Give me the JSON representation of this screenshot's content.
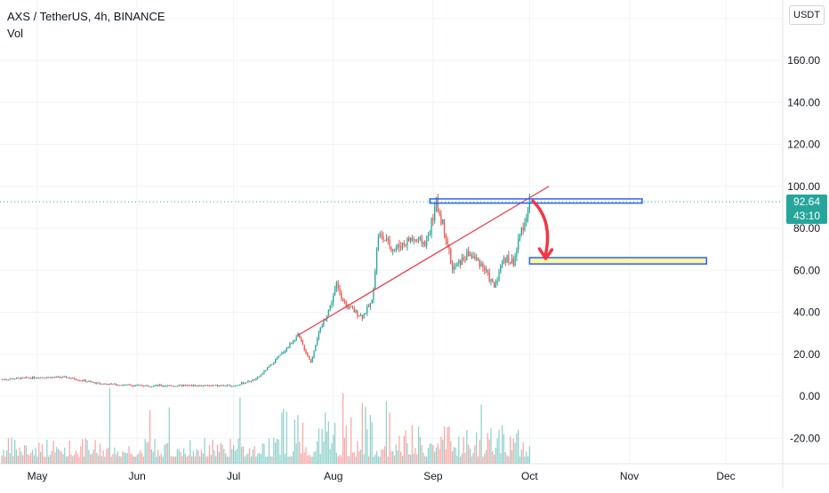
{
  "header": {
    "symbol_line": "AXS / TetherUS, 4h, BINANCE",
    "indicator": "Vol"
  },
  "price_axis": {
    "currency_button": "USDT",
    "current_price": "92.64",
    "countdown": "43:10"
  },
  "chart_data": {
    "type": "candlestick",
    "symbol": "AXS / TetherUS",
    "interval": "4h",
    "exchange": "BINANCE",
    "y_ticks": [
      "160.00",
      "140.00",
      "120.00",
      "100.00",
      "80.00",
      "60.00",
      "40.00",
      "20.00",
      "0.00",
      "-20.00"
    ],
    "y_tick_values": [
      160,
      140,
      120,
      100,
      80,
      60,
      40,
      20,
      0,
      -20
    ],
    "x_ticks": [
      "May",
      "Jun",
      "Jul",
      "Aug",
      "Sep",
      "Oct",
      "Nov",
      "Dec"
    ],
    "ylim": [
      -30,
      180
    ],
    "last_price": 92.64,
    "price_path": [
      [
        "Apr 20",
        8
      ],
      [
        "May 1",
        9
      ],
      [
        "May 10",
        9
      ],
      [
        "May 20",
        6
      ],
      [
        "Jun 1",
        5
      ],
      [
        "Jun 15",
        5
      ],
      [
        "Jul 1",
        5
      ],
      [
        "Jul 8",
        8
      ],
      [
        "Jul 12",
        14
      ],
      [
        "Jul 17",
        22
      ],
      [
        "Jul 21",
        29
      ],
      [
        "Jul 25",
        16
      ],
      [
        "Jul 27",
        28
      ],
      [
        "Jul 31",
        43
      ],
      [
        "Aug 2",
        53
      ],
      [
        "Aug 5",
        43
      ],
      [
        "Aug 10",
        38
      ],
      [
        "Aug 13",
        45
      ],
      [
        "Aug 15",
        77
      ],
      [
        "Aug 20",
        70
      ],
      [
        "Aug 25",
        75
      ],
      [
        "Aug 30",
        73
      ],
      [
        "Sep 2",
        92
      ],
      [
        "Sep 5",
        77
      ],
      [
        "Sep 7",
        60
      ],
      [
        "Sep 12",
        68
      ],
      [
        "Sep 16",
        63
      ],
      [
        "Sep 20",
        52
      ],
      [
        "Sep 23",
        66
      ],
      [
        "Sep 26",
        64
      ],
      [
        "Sep 28",
        76
      ],
      [
        "Oct 1",
        92.64
      ]
    ],
    "annotations": {
      "trendline": [
        [
          "Jul 21",
          29
        ],
        [
          "Oct 7",
          100
        ]
      ],
      "resistance_zone": {
        "from": "Aug 31",
        "to": "Nov 5",
        "low": 92,
        "high": 94
      },
      "target_zone": {
        "from": "Oct 1",
        "to": "Nov 25",
        "low": 63,
        "high": 66
      },
      "arrow": {
        "from": [
          "Oct 2",
          93
        ],
        "to": [
          "Oct 6",
          66
        ]
      }
    },
    "volume_bars": "per-candle volume histogram at bottom",
    "colors": {
      "up": "#26a69a",
      "down": "#ef5350",
      "trendline": "#f23645",
      "zone_border": "#2962ff",
      "target_fill": "#fff59d",
      "arrow": "#f23645"
    }
  }
}
